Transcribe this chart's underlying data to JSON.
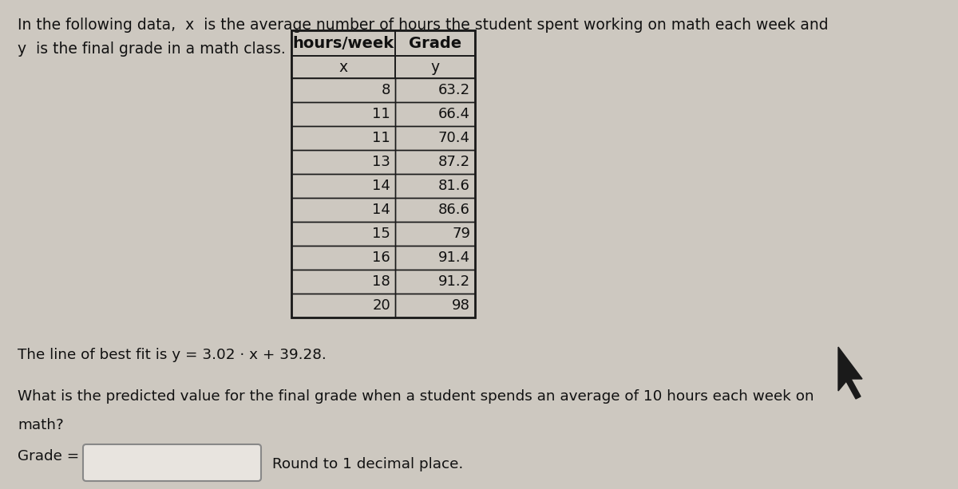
{
  "intro_line1": "In the following data,  x  is the average number of hours the student spent working on math each week and",
  "intro_line2": "y  is the final grade in a math class.",
  "col1_header": "hours/week",
  "col2_header": "Grade",
  "col1_sub": "x",
  "col2_sub": "y",
  "x_values": [
    8,
    11,
    11,
    13,
    14,
    14,
    15,
    16,
    18,
    20
  ],
  "y_values": [
    "63.2",
    "66.4",
    "70.4",
    "87.2",
    "81.6",
    "86.6",
    "79",
    "91.4",
    "91.2",
    "98"
  ],
  "best_fit": "The line of best fit is y = 3.02 · x + 39.28.",
  "question1": "What is the predicted value for the final grade when a student spends an average of 10 hours each week on",
  "question2": "math?",
  "grade_label": "Grade =",
  "round_text": "Round to 1 decimal place.",
  "bg_color": "#cdc8c0",
  "text_color": "#111111",
  "table_border": "#1a1a1a",
  "input_bg": "#e8e4df"
}
